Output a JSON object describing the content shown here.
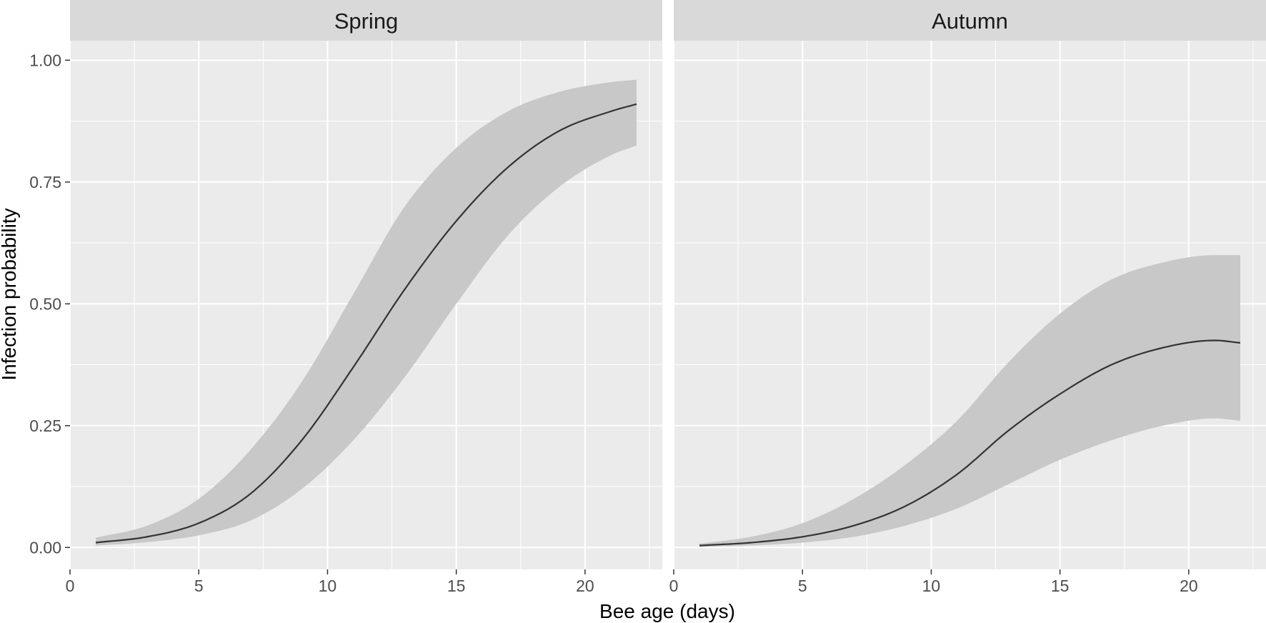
{
  "chart_data": {
    "type": "line",
    "xlabel": "Bee age (days)",
    "ylabel": "Infection probability",
    "xlim": [
      0,
      23
    ],
    "ylim": [
      -0.045,
      1.04
    ],
    "x_ticks": [
      0,
      5,
      10,
      15,
      20
    ],
    "x_tick_labels": [
      "0",
      "5",
      "10",
      "15",
      "20"
    ],
    "y_ticks": [
      0,
      0.25,
      0.5,
      0.75,
      1.0
    ],
    "y_tick_labels": [
      "0.00",
      "0.25",
      "0.50",
      "0.75",
      "1.00"
    ],
    "grid": true,
    "colors": {
      "line": "#333333",
      "ribbon": "#c8c8c8",
      "panel": "#ebebeb",
      "strip": "#d9d9d9",
      "grid": "#ffffff"
    },
    "panels": [
      {
        "strip": "Spring",
        "x": [
          1,
          3,
          5,
          7,
          9,
          11,
          13,
          15,
          17,
          19,
          21,
          22
        ],
        "y": [
          0.01,
          0.022,
          0.05,
          0.11,
          0.22,
          0.37,
          0.53,
          0.67,
          0.78,
          0.855,
          0.895,
          0.91
        ],
        "lower": [
          0.004,
          0.011,
          0.025,
          0.055,
          0.12,
          0.22,
          0.35,
          0.5,
          0.64,
          0.74,
          0.805,
          0.825
        ],
        "upper": [
          0.02,
          0.045,
          0.1,
          0.2,
          0.34,
          0.52,
          0.7,
          0.82,
          0.895,
          0.935,
          0.955,
          0.96
        ]
      },
      {
        "strip": "Autumn",
        "x": [
          1,
          3,
          5,
          7,
          9,
          11,
          13,
          15,
          17,
          19,
          21,
          22
        ],
        "y": [
          0.004,
          0.01,
          0.022,
          0.045,
          0.085,
          0.15,
          0.24,
          0.315,
          0.375,
          0.41,
          0.425,
          0.42
        ],
        "lower": [
          0.001,
          0.004,
          0.01,
          0.022,
          0.045,
          0.08,
          0.13,
          0.18,
          0.22,
          0.25,
          0.265,
          0.26
        ],
        "upper": [
          0.008,
          0.022,
          0.05,
          0.1,
          0.17,
          0.26,
          0.38,
          0.48,
          0.55,
          0.585,
          0.6,
          0.6
        ]
      }
    ]
  }
}
